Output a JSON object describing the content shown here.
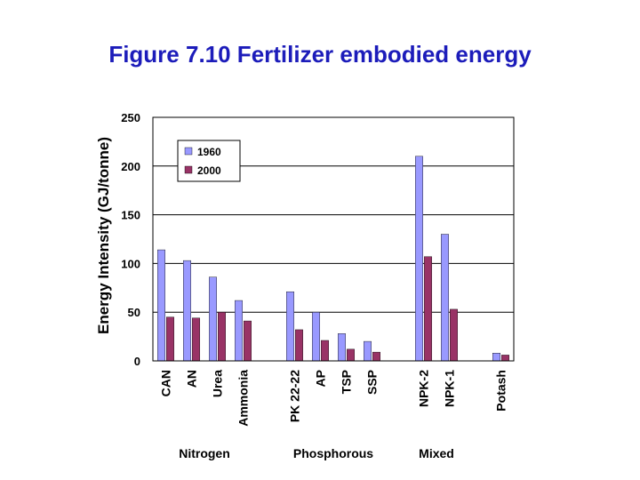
{
  "chart_data": {
    "type": "bar",
    "title": "Figure 7.10 Fertilizer embodied energy",
    "ylabel": "Energy Intensity (GJ/tonne)",
    "xlabel": "",
    "ylim": [
      0,
      250
    ],
    "yticks": [
      0,
      50,
      100,
      150,
      200,
      250
    ],
    "grid": true,
    "legend": "top-left",
    "categories": [
      "CAN",
      "AN",
      "Urea",
      "Ammonia",
      "",
      "PK 22-22",
      "AP",
      "TSP",
      "SSP",
      "",
      "NPK-2",
      "NPK-1",
      "",
      "Potash"
    ],
    "groups": [
      {
        "label": "Nitrogen",
        "start": 0,
        "end": 3
      },
      {
        "label": "Phosphorous",
        "start": 5,
        "end": 8
      },
      {
        "label": "Mixed",
        "start": 10,
        "end": 11
      }
    ],
    "series": [
      {
        "name": "1960",
        "color": "#9999ff",
        "values": [
          114,
          103,
          86,
          62,
          null,
          71,
          50,
          28,
          20,
          null,
          210,
          130,
          null,
          8
        ]
      },
      {
        "name": "2000",
        "color": "#993366",
        "values": [
          45,
          44,
          50,
          41,
          null,
          32,
          21,
          12,
          9,
          null,
          107,
          53,
          null,
          6
        ]
      }
    ]
  }
}
